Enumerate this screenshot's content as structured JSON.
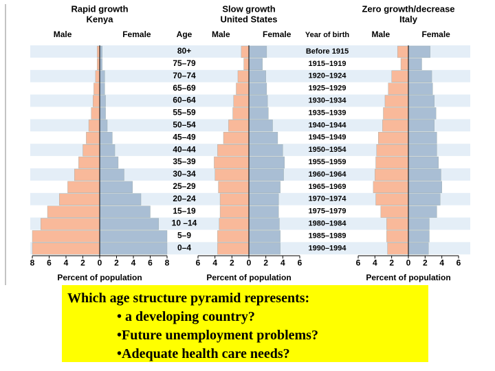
{
  "chart_data": [
    {
      "type": "pyramid",
      "title": "Rapid growth",
      "subtitle": "Kenya",
      "xlabel": "Percent of population",
      "series": [
        {
          "name": "Male",
          "color": "#f9b99a",
          "values": [
            0.3,
            0.3,
            0.5,
            0.7,
            0.8,
            1.0,
            1.3,
            1.6,
            2.0,
            2.5,
            3.0,
            3.8,
            4.8,
            6.2,
            7.0,
            8.0,
            8.0
          ]
        },
        {
          "name": "Female",
          "color": "#a9bed4",
          "values": [
            0.3,
            0.3,
            0.6,
            0.6,
            0.7,
            0.7,
            0.9,
            1.5,
            1.8,
            2.2,
            2.9,
            3.9,
            4.9,
            6.0,
            7.0,
            8.0,
            8.0
          ]
        }
      ],
      "xlim": [
        -8,
        8
      ],
      "xticks": [
        {
          "value": -8,
          "label": "8"
        },
        {
          "value": -6,
          "label": "6"
        },
        {
          "value": -4,
          "label": "4"
        },
        {
          "value": -2,
          "label": "2"
        },
        0,
        2,
        4,
        6,
        8
      ]
    },
    {
      "type": "pyramid",
      "title": "Slow growth",
      "subtitle": "United States",
      "xlabel": "Percent of population",
      "series": [
        {
          "name": "Male",
          "color": "#f9b99a",
          "values": [
            0.9,
            0.6,
            1.3,
            1.5,
            1.8,
            1.9,
            2.4,
            3.0,
            3.7,
            4.1,
            4.0,
            3.6,
            3.4,
            3.4,
            3.5,
            3.7,
            3.7
          ]
        },
        {
          "name": "Female",
          "color": "#a9bed4",
          "values": [
            2.1,
            1.6,
            2.0,
            2.1,
            2.2,
            2.3,
            2.8,
            3.4,
            4.0,
            4.2,
            4.1,
            3.7,
            3.5,
            3.5,
            3.6,
            3.7,
            3.7
          ]
        }
      ],
      "xlim": [
        -6,
        6
      ],
      "xticks": [
        {
          "value": -6,
          "label": "6"
        },
        {
          "value": -4,
          "label": "4"
        },
        {
          "value": -2,
          "label": "2"
        },
        0,
        2,
        4,
        6
      ]
    },
    {
      "type": "pyramid",
      "title": "Zero growth/decrease",
      "subtitle": "Italy",
      "xlabel": "Percent of population",
      "series": [
        {
          "name": "Male",
          "color": "#f9b99a",
          "values": [
            1.3,
            0.9,
            2.0,
            2.4,
            2.8,
            3.0,
            3.1,
            3.6,
            3.8,
            3.9,
            4.0,
            4.2,
            3.9,
            3.3,
            2.6,
            2.6,
            2.5
          ]
        },
        {
          "name": "Female",
          "color": "#a9bed4",
          "values": [
            2.6,
            1.6,
            2.8,
            2.9,
            3.1,
            3.3,
            3.1,
            3.4,
            3.4,
            3.6,
            3.9,
            4.0,
            3.8,
            3.4,
            2.5,
            2.5,
            2.4
          ]
        }
      ],
      "xlim": [
        -6,
        6
      ],
      "xticks": [
        {
          "value": -6,
          "label": "6"
        },
        {
          "value": -4,
          "label": "4"
        },
        {
          "value": -2,
          "label": "2"
        },
        0,
        2,
        4,
        6
      ]
    }
  ],
  "age_heading": "Age",
  "ages": [
    "80+",
    "75–79",
    "70–74",
    "65–69",
    "60–64",
    "55–59",
    "50–54",
    "45–49",
    "40–44",
    "35–39",
    "30–34",
    "25–29",
    "20–24",
    "15–19",
    "10 –14",
    "5–9",
    "0–4"
  ],
  "birth_heading": "Year of birth",
  "birth_years": [
    "Before 1915",
    "1915–1919",
    "1920–1924",
    "1925–1929",
    "1930–1934",
    "1935–1939",
    "1940–1944",
    "1945–1949",
    "1950–1954",
    "1955–1959",
    "1960–1964",
    "1965–1969",
    "1970–1974",
    "1975–1979",
    "1980–1984",
    "1985–1989",
    "1990–1994"
  ],
  "question": {
    "prompt": "Which age structure pyramid represents:",
    "items": [
      "• a developing country?",
      "•Future unemployment problems?",
      "•Adequate health care needs?"
    ]
  }
}
